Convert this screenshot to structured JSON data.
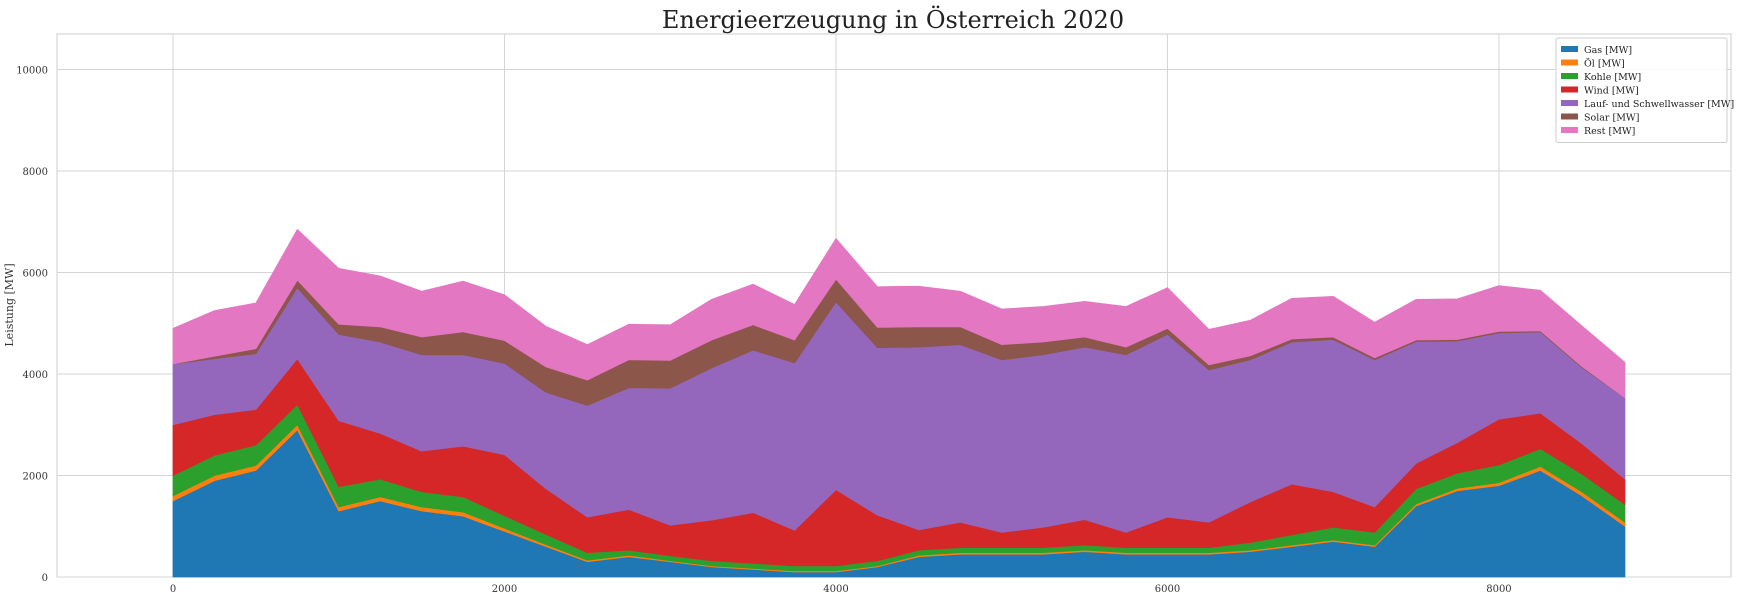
{
  "chart_data": {
    "type": "area",
    "stacked": true,
    "title": "Energieerzeugung in Österreich 2020",
    "xlabel": "",
    "ylabel": "Leistung [MW]",
    "xlim": [
      -700,
      9400
    ],
    "ylim": [
      0,
      10700
    ],
    "x_ticks": [
      0,
      2000,
      4000,
      6000,
      8000
    ],
    "y_ticks": [
      0,
      2000,
      4000,
      6000,
      8000,
      10000
    ],
    "grid": true,
    "legend_position": "top-right",
    "x": [
      0,
      250,
      500,
      750,
      1000,
      1250,
      1500,
      1750,
      2000,
      2250,
      2500,
      2750,
      3000,
      3250,
      3500,
      3750,
      4000,
      4250,
      4500,
      4750,
      5000,
      5250,
      5500,
      5750,
      6000,
      6250,
      6500,
      6750,
      7000,
      7250,
      7500,
      7750,
      8000,
      8250,
      8500,
      8760
    ],
    "series": [
      {
        "name": "Gas [MW]",
        "color": "#1f77b4",
        "values": [
          1500,
          1900,
          2100,
          2900,
          1300,
          1500,
          1300,
          1200,
          900,
          600,
          300,
          400,
          300,
          200,
          150,
          100,
          100,
          200,
          400,
          450,
          450,
          450,
          500,
          450,
          450,
          450,
          500,
          600,
          700,
          600,
          1400,
          1700,
          1800,
          2100,
          1600,
          1000
        ]
      },
      {
        "name": "Öl [MW]",
        "color": "#ff7f0e",
        "values": [
          100,
          100,
          100,
          100,
          80,
          80,
          80,
          80,
          60,
          40,
          30,
          30,
          20,
          20,
          20,
          20,
          20,
          20,
          30,
          30,
          30,
          30,
          30,
          30,
          30,
          30,
          30,
          30,
          30,
          30,
          40,
          50,
          60,
          80,
          80,
          80
        ]
      },
      {
        "name": "Kohle [MW]",
        "color": "#2ca02c",
        "values": [
          400,
          400,
          400,
          400,
          400,
          350,
          300,
          300,
          250,
          200,
          150,
          100,
          100,
          100,
          100,
          100,
          100,
          100,
          100,
          100,
          100,
          100,
          100,
          100,
          100,
          100,
          150,
          200,
          250,
          250,
          300,
          300,
          350,
          350,
          350,
          350
        ]
      },
      {
        "name": "Wind [MW]",
        "color": "#d62728",
        "values": [
          1000,
          800,
          700,
          900,
          1300,
          900,
          800,
          1000,
          1200,
          900,
          700,
          800,
          600,
          800,
          1000,
          700,
          1500,
          900,
          400,
          500,
          300,
          400,
          500,
          300,
          600,
          500,
          800,
          1000,
          700,
          500,
          500,
          600,
          900,
          700,
          600,
          500
        ]
      },
      {
        "name": "Lauf- und Schwellwasser [MW]",
        "color": "#9467bd",
        "values": [
          1200,
          1100,
          1100,
          1400,
          1700,
          1800,
          1900,
          1800,
          1800,
          1900,
          2200,
          2400,
          2700,
          3000,
          3200,
          3300,
          3700,
          3300,
          3600,
          3500,
          3400,
          3400,
          3400,
          3500,
          3600,
          3000,
          2800,
          2800,
          3000,
          2900,
          2400,
          2000,
          1700,
          1600,
          1500,
          1600
        ]
      },
      {
        "name": "Solar [MW]",
        "color": "#8c564b",
        "values": [
          0,
          50,
          100,
          150,
          200,
          300,
          350,
          450,
          450,
          500,
          500,
          550,
          550,
          550,
          500,
          450,
          450,
          400,
          400,
          350,
          300,
          250,
          200,
          150,
          120,
          100,
          80,
          60,
          50,
          40,
          30,
          30,
          30,
          20,
          20,
          0
        ]
      },
      {
        "name": "Rest [MW]",
        "color": "#e377c2",
        "values": [
          700,
          900,
          900,
          1000,
          1100,
          1000,
          900,
          1000,
          900,
          800,
          700,
          700,
          700,
          800,
          800,
          700,
          800,
          800,
          800,
          700,
          700,
          700,
          700,
          800,
          800,
          700,
          700,
          800,
          800,
          700,
          800,
          800,
          900,
          800,
          800,
          700
        ]
      }
    ]
  }
}
